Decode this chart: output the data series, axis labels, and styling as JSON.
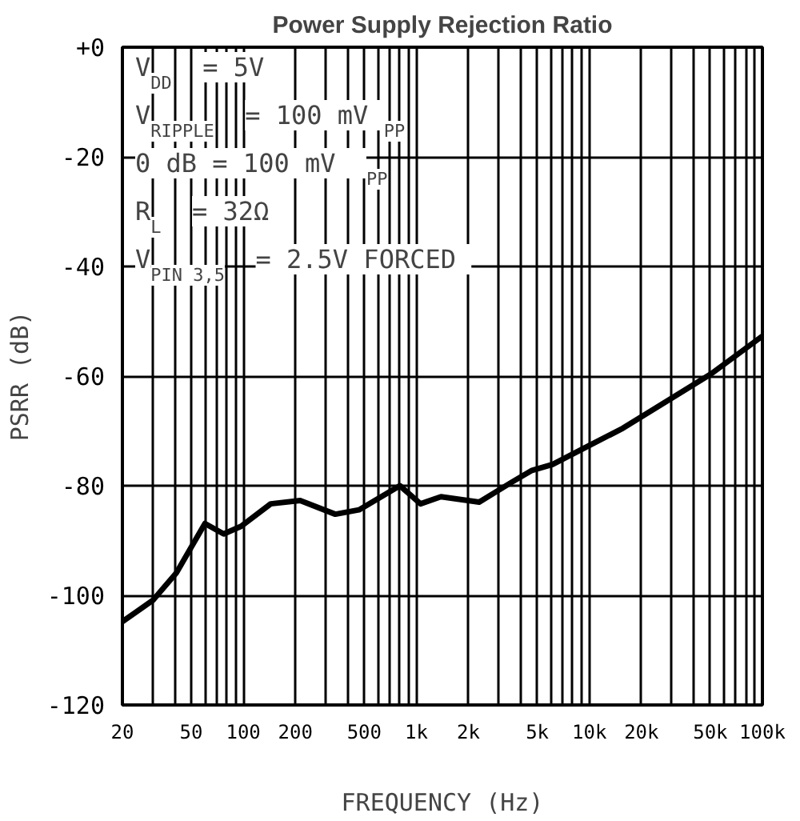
{
  "chart_data": {
    "type": "line",
    "title": "Power Supply Rejection Ratio",
    "xlabel": "FREQUENCY (Hz)",
    "ylabel": "PSRR (dB)",
    "log": "x",
    "grid": true,
    "annotations": [
      "V$_{DD}$  =  5V",
      "V$_{RIPPLE}$  =  100 mV$_{PP}$",
      "0 dB  =  100 mV$_{PP}$",
      "R$_{L}$  =  32Ω",
      "V$_{PIN 3,5}$  =  2.5V FORCED"
    ],
    "xlim": [
      20,
      100000
    ],
    "ylim": [
      -120,
      0
    ],
    "xticks": [
      20,
      {
        "value": 30,
        "label": null
      },
      {
        "value": 40,
        "label": null
      },
      50,
      {
        "value": 60,
        "label": null
      },
      {
        "value": 70,
        "label": null
      },
      {
        "value": 80,
        "label": null
      },
      {
        "value": 90,
        "label": null
      },
      100,
      200,
      {
        "value": 300,
        "label": null
      },
      {
        "value": 400,
        "label": null
      },
      500,
      {
        "value": 600,
        "label": null
      },
      {
        "value": 700,
        "label": null
      },
      {
        "value": 800,
        "label": null
      },
      {
        "value": 900,
        "label": null
      },
      {
        "value": 1000,
        "label": "1k"
      },
      {
        "value": 2000,
        "label": "2k"
      },
      {
        "value": 3000,
        "label": null
      },
      {
        "value": 4000,
        "label": null
      },
      {
        "value": 5000,
        "label": "5k"
      },
      {
        "value": 6000,
        "label": null
      },
      {
        "value": 7000,
        "label": null
      },
      {
        "value": 8000,
        "label": null
      },
      {
        "value": 9000,
        "label": null
      },
      {
        "value": 10000,
        "label": "10k"
      },
      {
        "value": 20000,
        "label": "20k"
      },
      {
        "value": 30000,
        "label": null
      },
      {
        "value": 40000,
        "label": null
      },
      {
        "value": 50000,
        "label": "50k"
      },
      {
        "value": 60000,
        "label": null
      },
      {
        "value": 70000,
        "label": null
      },
      {
        "value": 80000,
        "label": null
      },
      {
        "value": 90000,
        "label": null
      },
      {
        "value": 100000,
        "label": "100k"
      }
    ],
    "yticks": [
      {
        "value": 0,
        "label": "+0"
      },
      -20,
      -40,
      -60,
      -80,
      -100,
      -120
    ],
    "series": [
      {
        "color": "#000000",
        "x": [
          20,
          30,
          41,
          60,
          77,
          97,
          144,
          213,
          340,
          466,
          803,
          1057,
          1387,
          2307,
          3540,
          4660,
          6130,
          9800,
          15640,
          50500,
          100000
        ],
        "values": [
          -104.8,
          -100.9,
          -95.9,
          -86.9,
          -88.8,
          -87.4,
          -83.3,
          -82.7,
          -85.2,
          -84.4,
          -80,
          -83.3,
          -82,
          -83,
          -79.4,
          -77.2,
          -76.1,
          -72.8,
          -69.5,
          -59.6,
          -52.7
        ]
      }
    ]
  }
}
